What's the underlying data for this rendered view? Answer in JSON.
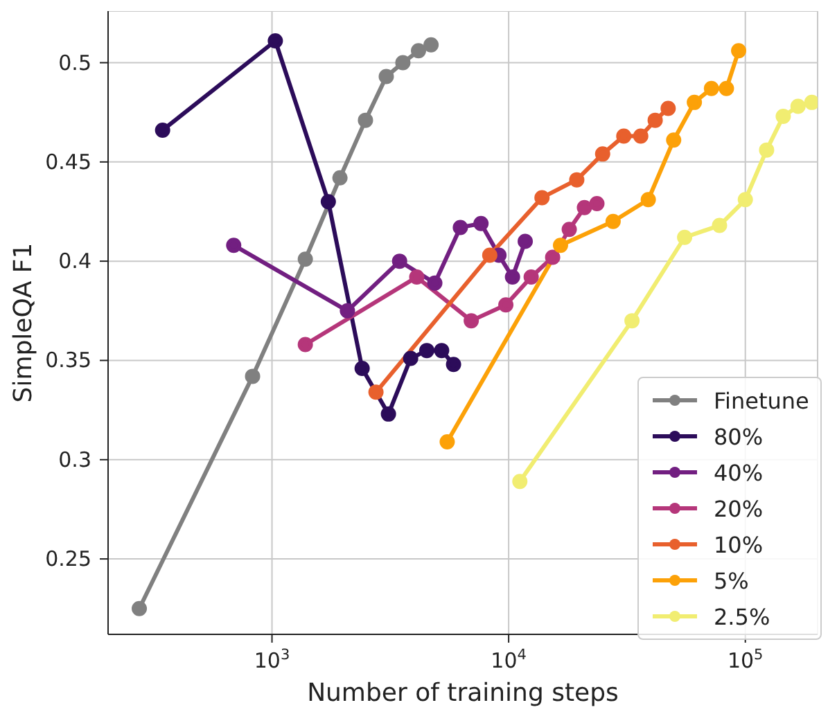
{
  "chart_data": {
    "type": "line",
    "xlabel": "Number of training steps",
    "ylabel": "SimpleQA F1",
    "log": "x",
    "grid": true,
    "legend": "bottom right",
    "marker": "circle",
    "line_style": "solid",
    "xlim": [
      203,
      202000
    ],
    "xticks": [
      {
        "value": 1000,
        "label": "10$^{3}$"
      },
      {
        "value": 10000,
        "label": "10$^{4}$"
      },
      {
        "value": 100000,
        "label": "10$^{5}$"
      }
    ],
    "ylim": [
      0.212,
      0.526
    ],
    "yticks": [
      0.25,
      0.3,
      0.35,
      0.4,
      0.45,
      0.5
    ],
    "series": [
      {
        "name": "Finetune",
        "color": "#808080",
        "x": [
          275,
          828,
          1383,
          1937,
          2483,
          3040,
          3573,
          4160,
          4700
        ],
        "values": [
          0.225,
          0.342,
          0.401,
          0.442,
          0.471,
          0.493,
          0.5,
          0.506,
          0.509
        ]
      },
      {
        "name": "80%",
        "color": "#2c0c5a",
        "x": [
          345,
          1033,
          1730,
          2404,
          3105,
          3853,
          4510,
          5210,
          5850
        ],
        "values": [
          0.466,
          0.511,
          0.43,
          0.346,
          0.323,
          0.351,
          0.355,
          0.355,
          0.348
        ]
      },
      {
        "name": "40%",
        "color": "#721f81",
        "x": [
          689,
          2083,
          3461,
          4875,
          6250,
          7640,
          9100,
          10380,
          11750
        ],
        "values": [
          0.408,
          0.375,
          0.4,
          0.389,
          0.417,
          0.419,
          0.403,
          0.392,
          0.41
        ]
      },
      {
        "name": "20%",
        "color": "#b5367a",
        "x": [
          1383,
          4090,
          6950,
          9730,
          12450,
          15340,
          18030,
          20900,
          23600
        ],
        "values": [
          0.358,
          0.392,
          0.37,
          0.378,
          0.392,
          0.402,
          0.416,
          0.427,
          0.429
        ]
      },
      {
        "name": "10%",
        "color": "#e8602d",
        "x": [
          2750,
          8320,
          13830,
          19400,
          24950,
          30650,
          36150,
          41600,
          47200
        ],
        "values": [
          0.334,
          0.403,
          0.432,
          0.441,
          0.454,
          0.463,
          0.463,
          0.471,
          0.477
        ]
      },
      {
        "name": "5%",
        "color": "#fca108",
        "x": [
          5500,
          16560,
          27630,
          38900,
          49800,
          60900,
          71900,
          83200,
          93700
        ],
        "values": [
          0.309,
          0.408,
          0.42,
          0.431,
          0.461,
          0.48,
          0.487,
          0.487,
          0.506
        ]
      },
      {
        "name": "2.5%",
        "color": "#f1ed71",
        "x": [
          11150,
          33200,
          55400,
          77800,
          100000,
          123000,
          144600,
          167000,
          191000
        ],
        "values": [
          0.289,
          0.37,
          0.412,
          0.418,
          0.431,
          0.456,
          0.473,
          0.478,
          0.48
        ]
      }
    ]
  }
}
